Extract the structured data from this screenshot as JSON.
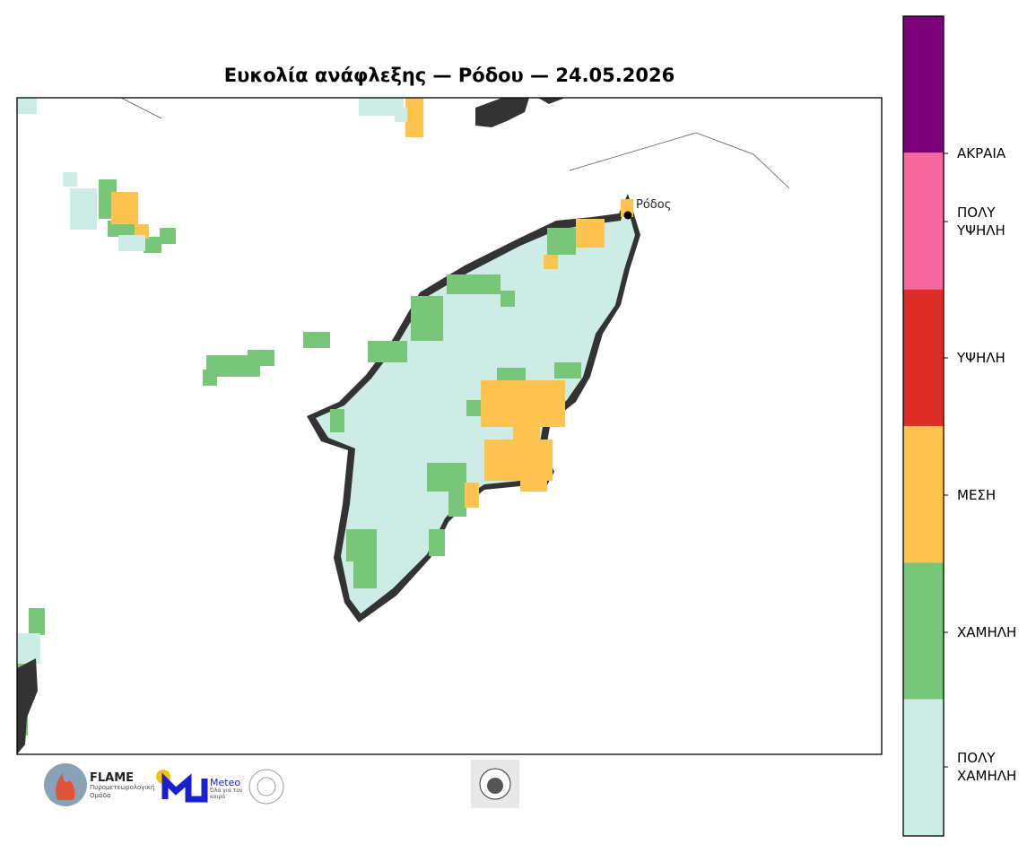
{
  "title": "Ευκολία ανάφλεξης — Ρόδου — 24.05.2026",
  "map": {
    "place_label": "Ρόδος"
  },
  "legend": {
    "categories": [
      {
        "label": "ΑΚΡΑΙΑ",
        "color": "#7a0177"
      },
      {
        "label": "ΠΟΛΥ ΥΨΗΛΗ",
        "color": "#f768a1"
      },
      {
        "label": "ΥΨΗΛΗ",
        "color": "#de2d26"
      },
      {
        "label": "ΜΕΣΗ",
        "color": "#fec44f"
      },
      {
        "label": "ΧΑΜΗΛΗ",
        "color": "#78c679"
      },
      {
        "label": "ΠΟΛΥ ΧΑΜΗΛΗ",
        "color": "#cdece5"
      }
    ]
  },
  "logos": {
    "flame_name": "FLAME",
    "flame_sub": "Πυρομετεωρολογική Ομάδα",
    "meteo_name": "Meteo",
    "meteo_sub": "Όλα για τον καιρό"
  }
}
